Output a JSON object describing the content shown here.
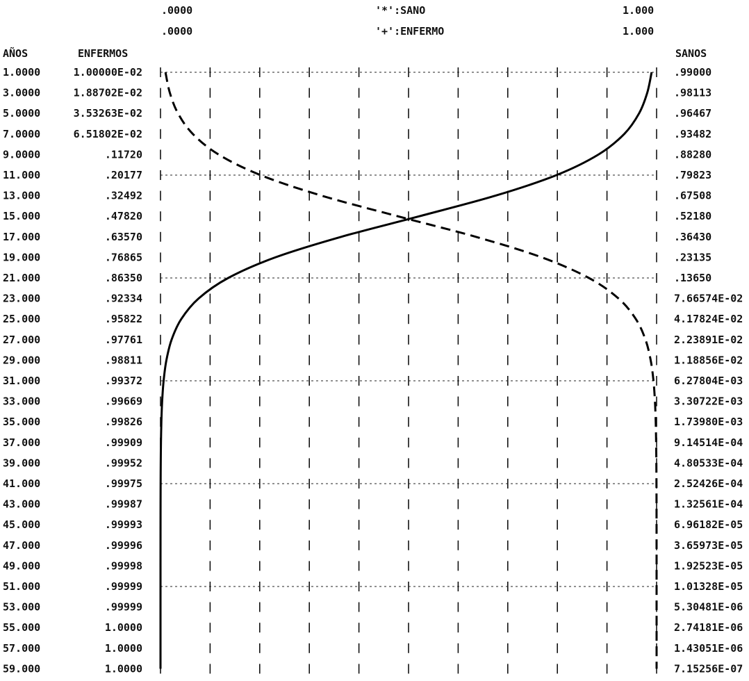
{
  "header": {
    "scale_min_1": ".0000",
    "scale_min_2": ".0000",
    "legend_1": "'*':SANO",
    "legend_2": "'+':ENFERMO",
    "scale_max_1": "1.000",
    "scale_max_2": "1.000"
  },
  "columns": {
    "years": "AÑOS",
    "sick": "ENFERMOS",
    "healthy": "SANOS"
  },
  "rows": [
    {
      "year": "1.0000",
      "sick": "1.00000E-02",
      "healthy": ".99000"
    },
    {
      "year": "3.0000",
      "sick": "1.88702E-02",
      "healthy": ".98113"
    },
    {
      "year": "5.0000",
      "sick": "3.53263E-02",
      "healthy": ".96467"
    },
    {
      "year": "7.0000",
      "sick": "6.51802E-02",
      "healthy": ".93482"
    },
    {
      "year": "9.0000",
      "sick": ".11720",
      "healthy": ".88280"
    },
    {
      "year": "11.000",
      "sick": ".20177",
      "healthy": ".79823"
    },
    {
      "year": "13.000",
      "sick": ".32492",
      "healthy": ".67508"
    },
    {
      "year": "15.000",
      "sick": ".47820",
      "healthy": ".52180"
    },
    {
      "year": "17.000",
      "sick": ".63570",
      "healthy": ".36430"
    },
    {
      "year": "19.000",
      "sick": ".76865",
      "healthy": ".23135"
    },
    {
      "year": "21.000",
      "sick": ".86350",
      "healthy": ".13650"
    },
    {
      "year": "23.000",
      "sick": ".92334",
      "healthy": "7.66574E-02"
    },
    {
      "year": "25.000",
      "sick": ".95822",
      "healthy": "4.17824E-02"
    },
    {
      "year": "27.000",
      "sick": ".97761",
      "healthy": "2.23891E-02"
    },
    {
      "year": "29.000",
      "sick": ".98811",
      "healthy": "1.18856E-02"
    },
    {
      "year": "31.000",
      "sick": ".99372",
      "healthy": "6.27804E-03"
    },
    {
      "year": "33.000",
      "sick": ".99669",
      "healthy": "3.30722E-03"
    },
    {
      "year": "35.000",
      "sick": ".99826",
      "healthy": "1.73980E-03"
    },
    {
      "year": "37.000",
      "sick": ".99909",
      "healthy": "9.14514E-04"
    },
    {
      "year": "39.000",
      "sick": ".99952",
      "healthy": "4.80533E-04"
    },
    {
      "year": "41.000",
      "sick": ".99975",
      "healthy": "2.52426E-04"
    },
    {
      "year": "43.000",
      "sick": ".99987",
      "healthy": "1.32561E-04"
    },
    {
      "year": "45.000",
      "sick": ".99993",
      "healthy": "6.96182E-05"
    },
    {
      "year": "47.000",
      "sick": ".99996",
      "healthy": "3.65973E-05"
    },
    {
      "year": "49.000",
      "sick": ".99998",
      "healthy": "1.92523E-05"
    },
    {
      "year": "51.000",
      "sick": ".99999",
      "healthy": "1.01328E-05"
    },
    {
      "year": "53.000",
      "sick": ".99999",
      "healthy": "5.30481E-06"
    },
    {
      "year": "55.000",
      "sick": "1.0000",
      "healthy": "2.74181E-06"
    },
    {
      "year": "57.000",
      "sick": "1.0000",
      "healthy": "1.43051E-06"
    },
    {
      "year": "59.000",
      "sick": "1.0000",
      "healthy": "7.15256E-07"
    }
  ],
  "chart_data": {
    "type": "line",
    "orientation": "horizontal-value-axis",
    "x_range": [
      0,
      1
    ],
    "categories": [
      1,
      3,
      5,
      7,
      9,
      11,
      13,
      15,
      17,
      19,
      21,
      23,
      25,
      27,
      29,
      31,
      33,
      35,
      37,
      39,
      41,
      43,
      45,
      47,
      49,
      51,
      53,
      55,
      57,
      59
    ],
    "series": [
      {
        "name": "'*':SANO",
        "style": "solid",
        "values": [
          0.99,
          0.98113,
          0.96467,
          0.93482,
          0.8828,
          0.79823,
          0.67508,
          0.5218,
          0.3643,
          0.23135,
          0.1365,
          0.0766574,
          0.0417824,
          0.0223891,
          0.0118856,
          0.00627804,
          0.00330722,
          0.0017398,
          0.000914514,
          0.000480533,
          0.000252426,
          0.000132561,
          6.96182e-05,
          3.65973e-05,
          1.92523e-05,
          1.01328e-05,
          5.30481e-06,
          2.74181e-06,
          1.43051e-06,
          7.15256e-07
        ]
      },
      {
        "name": "'+':ENFERMO",
        "style": "dashed",
        "values": [
          0.01,
          0.0188702,
          0.0353263,
          0.0651802,
          0.1172,
          0.20177,
          0.32492,
          0.4782,
          0.6357,
          0.76865,
          0.8635,
          0.92334,
          0.95822,
          0.97761,
          0.98811,
          0.99372,
          0.99669,
          0.99826,
          0.99909,
          0.99952,
          0.99975,
          0.99987,
          0.99993,
          0.99996,
          0.99998,
          0.99999,
          0.99999,
          1.0,
          1.0,
          1.0
        ]
      }
    ],
    "grid": true,
    "grid_dashed_every_rows": 5,
    "vertical_ticks": 10
  }
}
